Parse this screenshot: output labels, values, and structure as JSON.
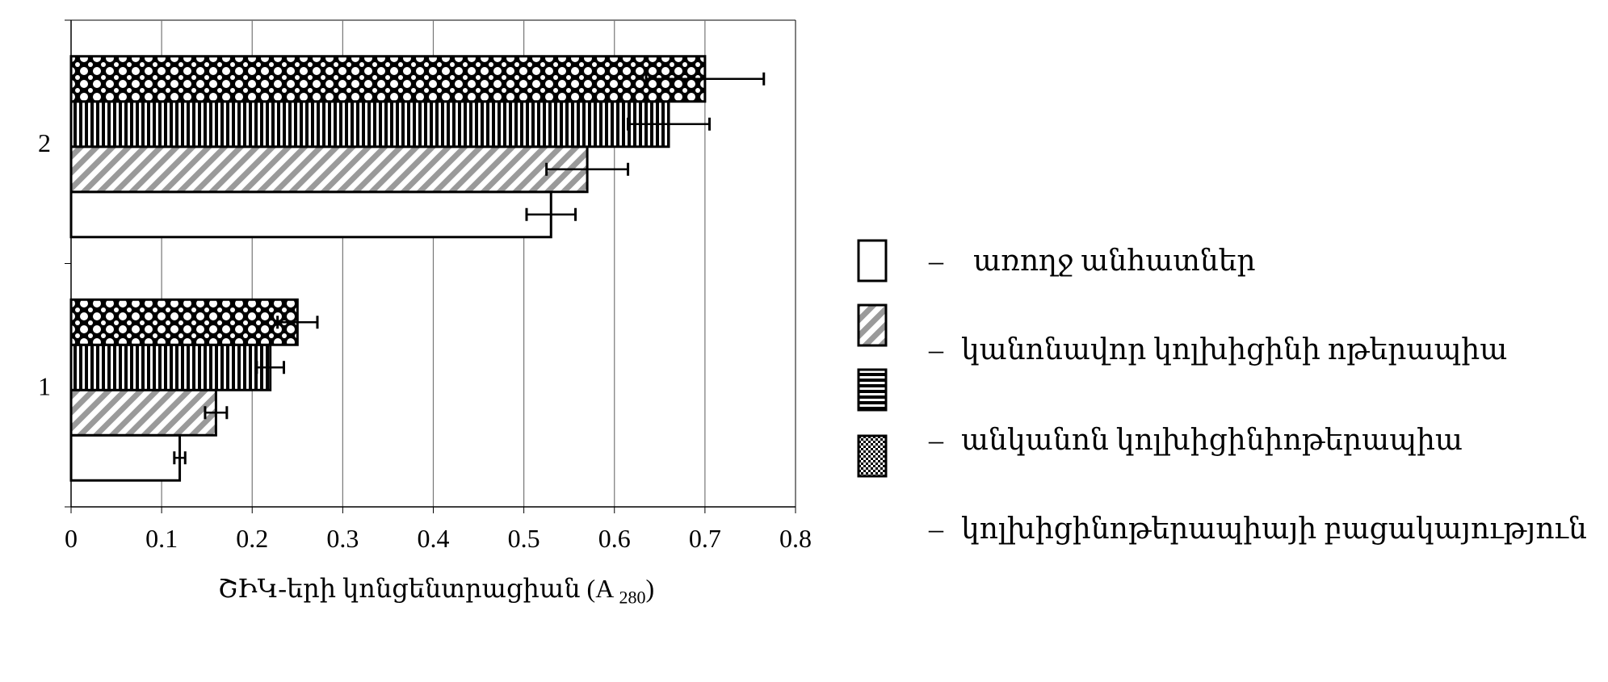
{
  "chart_data": {
    "type": "bar",
    "orientation": "horizontal",
    "categories": [
      "1",
      "2"
    ],
    "series": [
      {
        "name": "առողջ անհատներ",
        "values": [
          0.12,
          0.53
        ],
        "errors": [
          0.006,
          0.027
        ],
        "pattern": "empty"
      },
      {
        "name": "կանոնավոր կոլխիցինի   ոթերապիա",
        "values": [
          0.16,
          0.57
        ],
        "errors": [
          0.012,
          0.045
        ],
        "pattern": "diagonal"
      },
      {
        "name": "անկանոն կոլխիցինիոթերապիա",
        "values": [
          0.22,
          0.66
        ],
        "errors": [
          0.015,
          0.045
        ],
        "pattern": "vertical"
      },
      {
        "name": "կոլխիցինոթերապիայի բացակայություն",
        "values": [
          0.25,
          0.7
        ],
        "errors": [
          0.022,
          0.065
        ],
        "pattern": "checker"
      }
    ],
    "xlim": [
      0,
      0.8
    ],
    "xticks": [
      "0",
      "0.1",
      "0.2",
      "0.3",
      "0.4",
      "0.5",
      "0.6",
      "0.7",
      "0.8"
    ],
    "xlabel_main": "ՇԻԿ-երի կոնցենտրացիան (A",
    "xlabel_sub": "280",
    "xlabel_close": ")",
    "grid": "vertical",
    "legend_position": "right"
  },
  "legend": {
    "dash": "–",
    "labels": [
      "առողջ անհատներ",
      "կանոնավոր կոլխիցինի   ոթերապիա",
      "անկանոն կոլխիցինիոթերապիա",
      "կոլխիցինոթերապիայի բացակայություն"
    ]
  }
}
